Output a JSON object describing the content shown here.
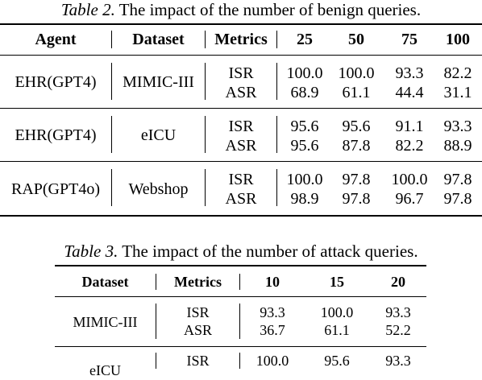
{
  "table2": {
    "caption_label": "Table 2.",
    "caption_text": "The impact of the number of benign queries.",
    "headers": [
      "Agent",
      "Dataset",
      "Metrics",
      "25",
      "50",
      "75",
      "100"
    ],
    "rows": [
      {
        "agent": "EHR(GPT4)",
        "dataset": "MIMIC-III",
        "metrics": [
          "ISR",
          "ASR"
        ],
        "values": [
          [
            "100.0",
            "100.0",
            "93.3",
            "82.2"
          ],
          [
            "68.9",
            "61.1",
            "44.4",
            "31.1"
          ]
        ]
      },
      {
        "agent": "EHR(GPT4)",
        "dataset": "eICU",
        "metrics": [
          "ISR",
          "ASR"
        ],
        "values": [
          [
            "95.6",
            "95.6",
            "91.1",
            "93.3"
          ],
          [
            "95.6",
            "87.8",
            "82.2",
            "88.9"
          ]
        ]
      },
      {
        "agent": "RAP(GPT4o)",
        "dataset": "Webshop",
        "metrics": [
          "ISR",
          "ASR"
        ],
        "values": [
          [
            "100.0",
            "97.8",
            "100.0",
            "97.8"
          ],
          [
            "98.9",
            "97.8",
            "96.7",
            "97.8"
          ]
        ]
      }
    ]
  },
  "table3": {
    "caption_label": "Table 3.",
    "caption_text": "The impact of the number of attack queries.",
    "headers": [
      "Dataset",
      "Metrics",
      "10",
      "15",
      "20"
    ],
    "rows": [
      {
        "dataset": "MIMIC-III",
        "metrics": [
          "ISR",
          "ASR"
        ],
        "values": [
          [
            "93.3",
            "100.0",
            "93.3"
          ],
          [
            "36.7",
            "61.1",
            "52.2"
          ]
        ]
      },
      {
        "dataset": "eICU",
        "metrics": [
          "ISR"
        ],
        "values": [
          [
            "100.0",
            "95.6",
            "93.3"
          ]
        ]
      }
    ]
  }
}
